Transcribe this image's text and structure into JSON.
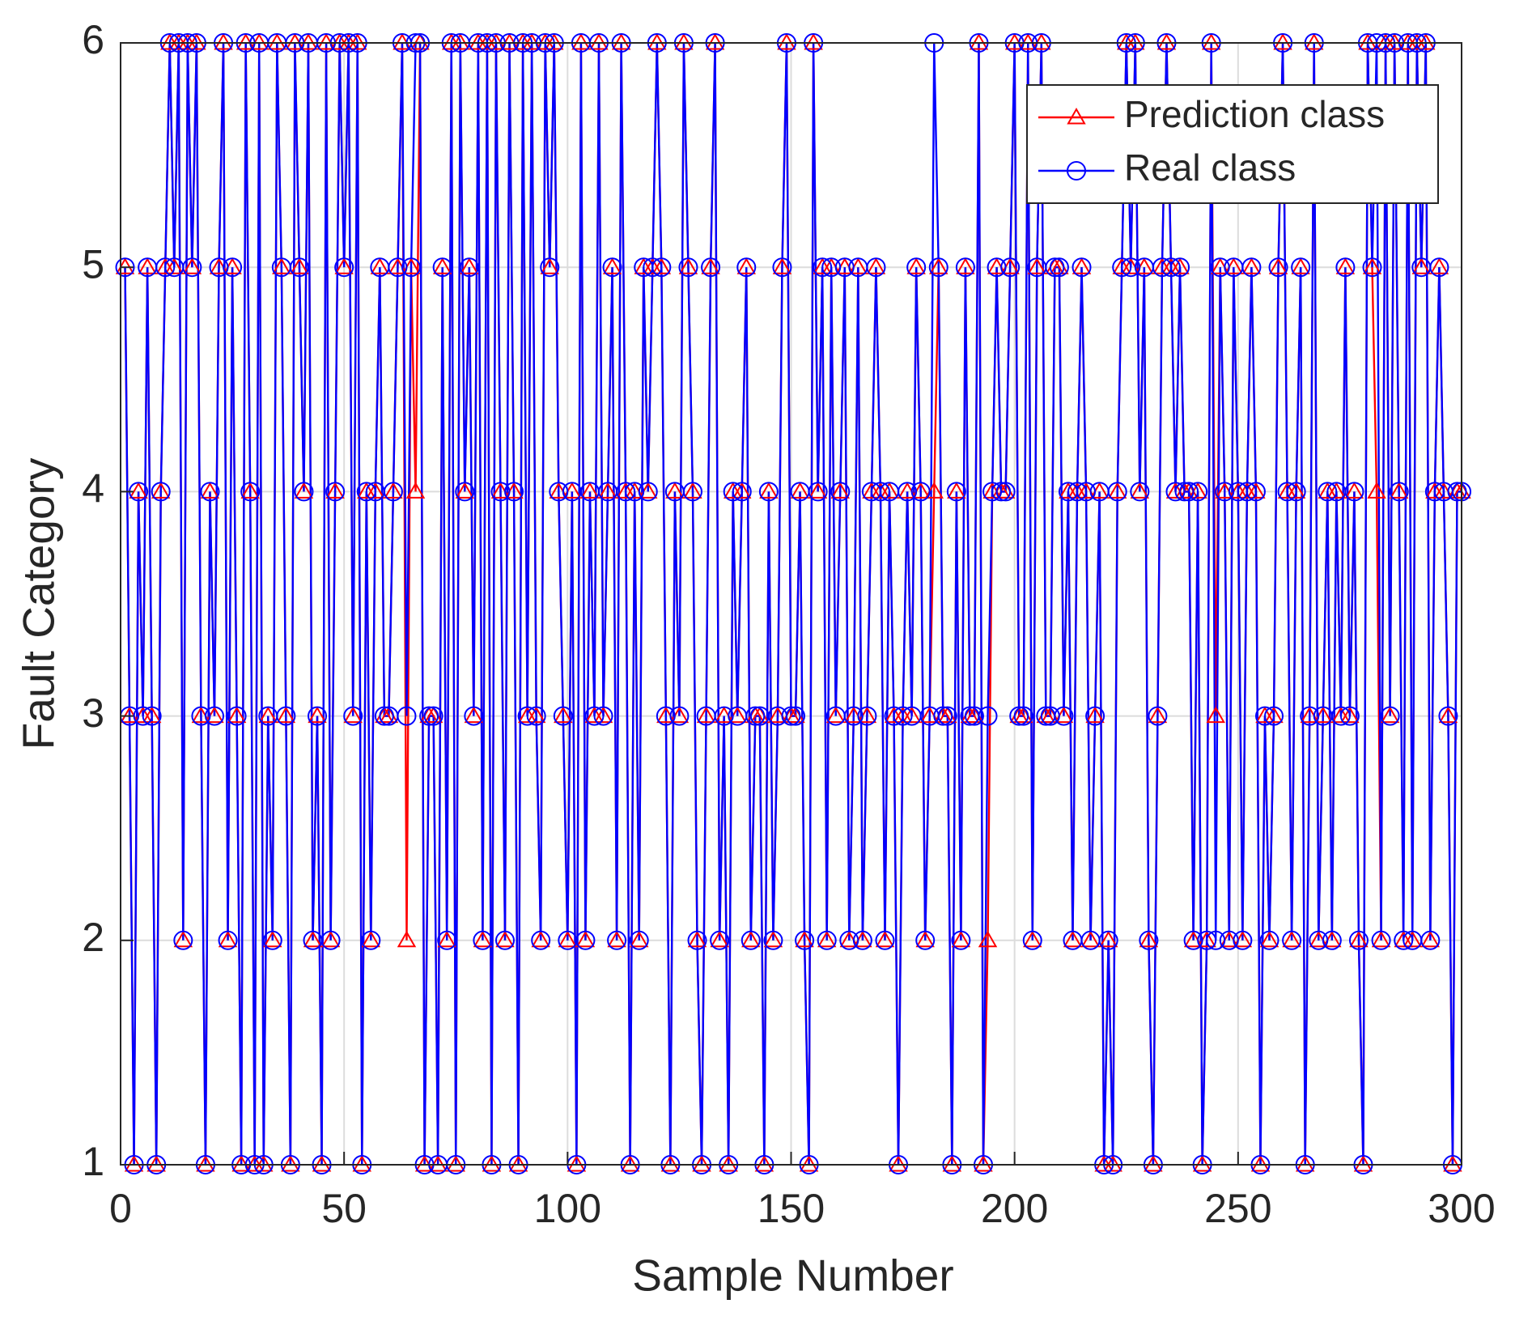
{
  "chart_data": {
    "type": "line",
    "xlabel": "Sample Number",
    "ylabel": "Fault Category",
    "xlim": [
      0,
      300
    ],
    "ylim": [
      1,
      6
    ],
    "xticks": [
      0,
      50,
      100,
      150,
      200,
      250,
      300
    ],
    "yticks": [
      1,
      2,
      3,
      4,
      5,
      6
    ],
    "grid": true,
    "legend": "upper right",
    "x": [
      1,
      2,
      3,
      4,
      5,
      6,
      7,
      8,
      9,
      10,
      11,
      12,
      13,
      14,
      15,
      16,
      17,
      18,
      19,
      20,
      21,
      22,
      23,
      24,
      25,
      26,
      27,
      28,
      29,
      30,
      31,
      32,
      33,
      34,
      35,
      36,
      37,
      38,
      39,
      40,
      41,
      42,
      43,
      44,
      45,
      46,
      47,
      48,
      49,
      50,
      51,
      52,
      53,
      54,
      55,
      56,
      57,
      58,
      59,
      60,
      61,
      62,
      63,
      64,
      65,
      66,
      67,
      68,
      69,
      70,
      71,
      72,
      73,
      74,
      75,
      76,
      77,
      78,
      79,
      80,
      81,
      82,
      83,
      84,
      85,
      86,
      87,
      88,
      89,
      90,
      91,
      92,
      93,
      94,
      95,
      96,
      97,
      98,
      99,
      100,
      101,
      102,
      103,
      104,
      105,
      106,
      107,
      108,
      109,
      110,
      111,
      112,
      113,
      114,
      115,
      116,
      117,
      118,
      119,
      120,
      121,
      122,
      123,
      124,
      125,
      126,
      127,
      128,
      129,
      130,
      131,
      132,
      133,
      134,
      135,
      136,
      137,
      138,
      139,
      140,
      141,
      142,
      143,
      144,
      145,
      146,
      147,
      148,
      149,
      150,
      151,
      152,
      153,
      154,
      155,
      156,
      157,
      158,
      159,
      160,
      161,
      162,
      163,
      164,
      165,
      166,
      167,
      168,
      169,
      170,
      171,
      172,
      173,
      174,
      175,
      176,
      177,
      178,
      179,
      180,
      181,
      182,
      183,
      184,
      185,
      186,
      187,
      188,
      189,
      190,
      191,
      192,
      193,
      194,
      195,
      196,
      197,
      198,
      199,
      200,
      201,
      202,
      203,
      204,
      205,
      206,
      207,
      208,
      209,
      210,
      211,
      212,
      213,
      214,
      215,
      216,
      217,
      218,
      219,
      220,
      221,
      222,
      223,
      224,
      225,
      226,
      227,
      228,
      229,
      230,
      231,
      232,
      233,
      234,
      235,
      236,
      237,
      238,
      239,
      240,
      241,
      242,
      243,
      244,
      245,
      246,
      247,
      248,
      249,
      250,
      251,
      252,
      253,
      254,
      255,
      256,
      257,
      258,
      259,
      260,
      261,
      262,
      263,
      264,
      265,
      266,
      267,
      268,
      269,
      270,
      271,
      272,
      273,
      274,
      275,
      276,
      277,
      278,
      279,
      280,
      281,
      282,
      283,
      284,
      285,
      286,
      287,
      288,
      289,
      290,
      291,
      292,
      293,
      294,
      295,
      296,
      297,
      298,
      299,
      300
    ],
    "series": [
      {
        "name": "Prediction class",
        "color": "#ff0000",
        "marker": "triangle",
        "values": [
          5,
          3,
          1,
          4,
          3,
          5,
          3,
          1,
          4,
          5,
          6,
          5,
          6,
          2,
          6,
          5,
          6,
          3,
          1,
          4,
          3,
          5,
          6,
          2,
          5,
          3,
          1,
          6,
          4,
          1,
          6,
          1,
          3,
          2,
          6,
          5,
          3,
          1,
          6,
          5,
          4,
          6,
          2,
          3,
          1,
          6,
          2,
          4,
          6,
          5,
          6,
          3,
          6,
          1,
          4,
          2,
          4,
          5,
          3,
          3,
          4,
          5,
          6,
          2,
          5,
          4,
          6,
          1,
          3,
          3,
          1,
          5,
          2,
          6,
          1,
          6,
          4,
          5,
          3,
          6,
          2,
          6,
          1,
          6,
          4,
          2,
          6,
          4,
          1,
          6,
          3,
          6,
          3,
          2,
          6,
          5,
          6,
          4,
          3,
          2,
          4,
          1,
          6,
          2,
          4,
          3,
          6,
          3,
          4,
          5,
          2,
          6,
          4,
          1,
          4,
          2,
          5,
          4,
          5,
          6,
          5,
          3,
          1,
          4,
          3,
          6,
          5,
          4,
          2,
          1,
          3,
          5,
          6,
          2,
          3,
          1,
          4,
          3,
          4,
          5,
          2,
          3,
          3,
          1,
          4,
          2,
          3,
          5,
          6,
          3,
          3,
          4,
          2,
          1,
          6,
          4,
          5,
          2,
          5,
          3,
          4,
          5,
          2,
          3,
          5,
          2,
          3,
          4,
          5,
          4,
          2,
          4,
          3,
          1,
          3,
          4,
          3,
          5,
          4,
          2,
          3,
          4,
          5,
          3,
          3,
          1,
          4,
          2,
          5,
          3,
          3,
          6,
          1,
          2,
          4,
          5,
          4,
          4,
          5,
          6,
          3,
          3,
          6,
          2,
          5,
          6,
          3,
          3,
          5,
          5,
          3,
          4,
          2,
          4,
          5,
          4,
          2,
          3,
          4,
          1,
          2,
          1,
          4,
          5,
          6,
          5,
          6,
          4,
          5,
          2,
          1,
          3,
          5,
          6,
          5,
          4,
          5,
          4,
          4,
          2,
          4,
          1,
          2,
          6,
          3,
          5,
          4,
          2,
          5,
          4,
          2,
          4,
          5,
          4,
          1,
          3,
          2,
          3,
          5,
          6,
          4,
          2,
          4,
          5,
          1,
          3,
          6,
          2,
          3,
          4,
          2,
          4,
          3,
          5,
          3,
          4,
          2,
          1,
          6,
          5,
          4,
          2,
          6,
          3,
          6,
          4,
          2,
          6,
          2,
          6,
          5,
          6,
          2,
          4,
          5,
          4,
          3,
          1,
          4,
          4
        ]
      },
      {
        "name": "Real class",
        "color": "#0000ff",
        "marker": "circle",
        "values": [
          5,
          3,
          1,
          4,
          3,
          5,
          3,
          1,
          4,
          5,
          6,
          5,
          6,
          2,
          6,
          5,
          6,
          3,
          1,
          4,
          3,
          5,
          6,
          2,
          5,
          3,
          1,
          6,
          4,
          1,
          6,
          1,
          3,
          2,
          6,
          5,
          3,
          1,
          6,
          5,
          4,
          6,
          2,
          3,
          1,
          6,
          2,
          4,
          6,
          5,
          6,
          3,
          6,
          1,
          4,
          2,
          4,
          5,
          3,
          3,
          4,
          5,
          6,
          3,
          5,
          6,
          6,
          1,
          3,
          3,
          1,
          5,
          2,
          6,
          1,
          6,
          4,
          5,
          3,
          6,
          2,
          6,
          1,
          6,
          4,
          2,
          6,
          4,
          1,
          6,
          3,
          6,
          3,
          2,
          6,
          5,
          6,
          4,
          3,
          2,
          4,
          1,
          6,
          2,
          4,
          3,
          6,
          3,
          4,
          5,
          2,
          6,
          4,
          1,
          4,
          2,
          5,
          4,
          5,
          6,
          5,
          3,
          1,
          4,
          3,
          6,
          5,
          4,
          2,
          1,
          3,
          5,
          6,
          2,
          3,
          1,
          4,
          3,
          4,
          5,
          2,
          3,
          3,
          1,
          4,
          2,
          3,
          5,
          6,
          3,
          3,
          4,
          2,
          1,
          6,
          4,
          5,
          2,
          5,
          3,
          4,
          5,
          2,
          3,
          5,
          2,
          3,
          4,
          5,
          4,
          2,
          4,
          3,
          1,
          3,
          4,
          3,
          5,
          4,
          2,
          3,
          6,
          5,
          3,
          3,
          1,
          4,
          2,
          5,
          3,
          3,
          6,
          1,
          3,
          4,
          5,
          4,
          4,
          5,
          6,
          3,
          3,
          6,
          2,
          5,
          6,
          3,
          3,
          5,
          5,
          3,
          4,
          2,
          4,
          5,
          4,
          2,
          3,
          4,
          1,
          2,
          1,
          4,
          5,
          6,
          5,
          6,
          4,
          5,
          2,
          1,
          3,
          5,
          6,
          5,
          4,
          5,
          4,
          4,
          2,
          4,
          1,
          2,
          6,
          2,
          5,
          4,
          2,
          5,
          4,
          2,
          4,
          5,
          4,
          1,
          3,
          2,
          3,
          5,
          6,
          4,
          2,
          4,
          5,
          1,
          3,
          6,
          2,
          3,
          4,
          2,
          4,
          3,
          5,
          3,
          4,
          2,
          1,
          6,
          5,
          6,
          2,
          6,
          3,
          6,
          4,
          2,
          6,
          2,
          6,
          5,
          6,
          2,
          4,
          5,
          4,
          3,
          1,
          4,
          4
        ]
      }
    ]
  }
}
